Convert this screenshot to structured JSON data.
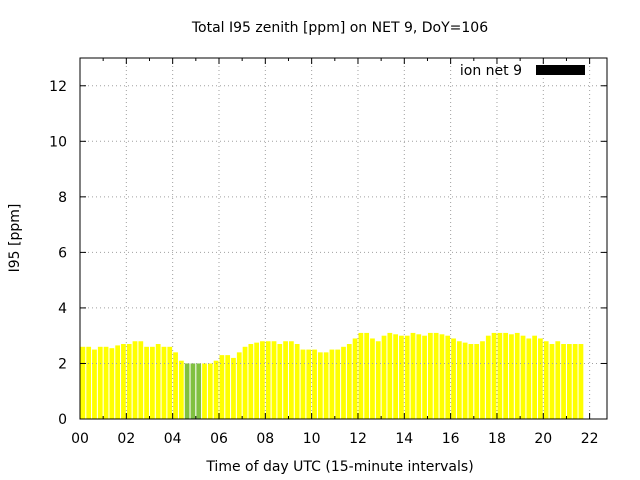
{
  "chart_data": {
    "type": "bar",
    "title": "Total I95 zenith [ppm] on NET 9, DoY=106",
    "xlabel": "Time of day UTC (15-minute intervals)",
    "ylabel": "I95 [ppm]",
    "xlim": [
      0,
      22.75
    ],
    "ylim": [
      0,
      13
    ],
    "x_ticks": [
      "00",
      "02",
      "04",
      "06",
      "08",
      "10",
      "12",
      "14",
      "16",
      "18",
      "20",
      "22"
    ],
    "y_ticks": [
      "0",
      "2",
      "4",
      "6",
      "8",
      "10",
      "12"
    ],
    "grid": true,
    "legend_position": "top-right",
    "bar_interval_hours": 0.25,
    "series": [
      {
        "name": "ion net 9",
        "legend_color": "#000000",
        "colors": {
          "normal": "#ffff00",
          "low": "#80c040"
        },
        "values": [
          2.6,
          2.6,
          2.5,
          2.6,
          2.6,
          2.55,
          2.65,
          2.7,
          2.7,
          2.8,
          2.8,
          2.6,
          2.6,
          2.7,
          2.6,
          2.6,
          2.4,
          2.1,
          2.0,
          2.0,
          2.0,
          2.0,
          2.0,
          2.1,
          2.3,
          2.3,
          2.2,
          2.4,
          2.6,
          2.7,
          2.75,
          2.8,
          2.8,
          2.8,
          2.7,
          2.8,
          2.8,
          2.7,
          2.5,
          2.5,
          2.5,
          2.4,
          2.4,
          2.5,
          2.5,
          2.6,
          2.7,
          2.9,
          3.1,
          3.1,
          2.9,
          2.8,
          3.0,
          3.1,
          3.05,
          3.0,
          3.0,
          3.1,
          3.05,
          3.0,
          3.1,
          3.1,
          3.05,
          3.0,
          2.9,
          2.8,
          2.75,
          2.7,
          2.7,
          2.8,
          3.0,
          3.1,
          3.1,
          3.1,
          3.05,
          3.1,
          3.0,
          2.9,
          3.0,
          2.9,
          2.8,
          2.7,
          2.8,
          2.7,
          2.7,
          2.7,
          2.7
        ],
        "low_indices": [
          18,
          19,
          20
        ]
      }
    ]
  }
}
